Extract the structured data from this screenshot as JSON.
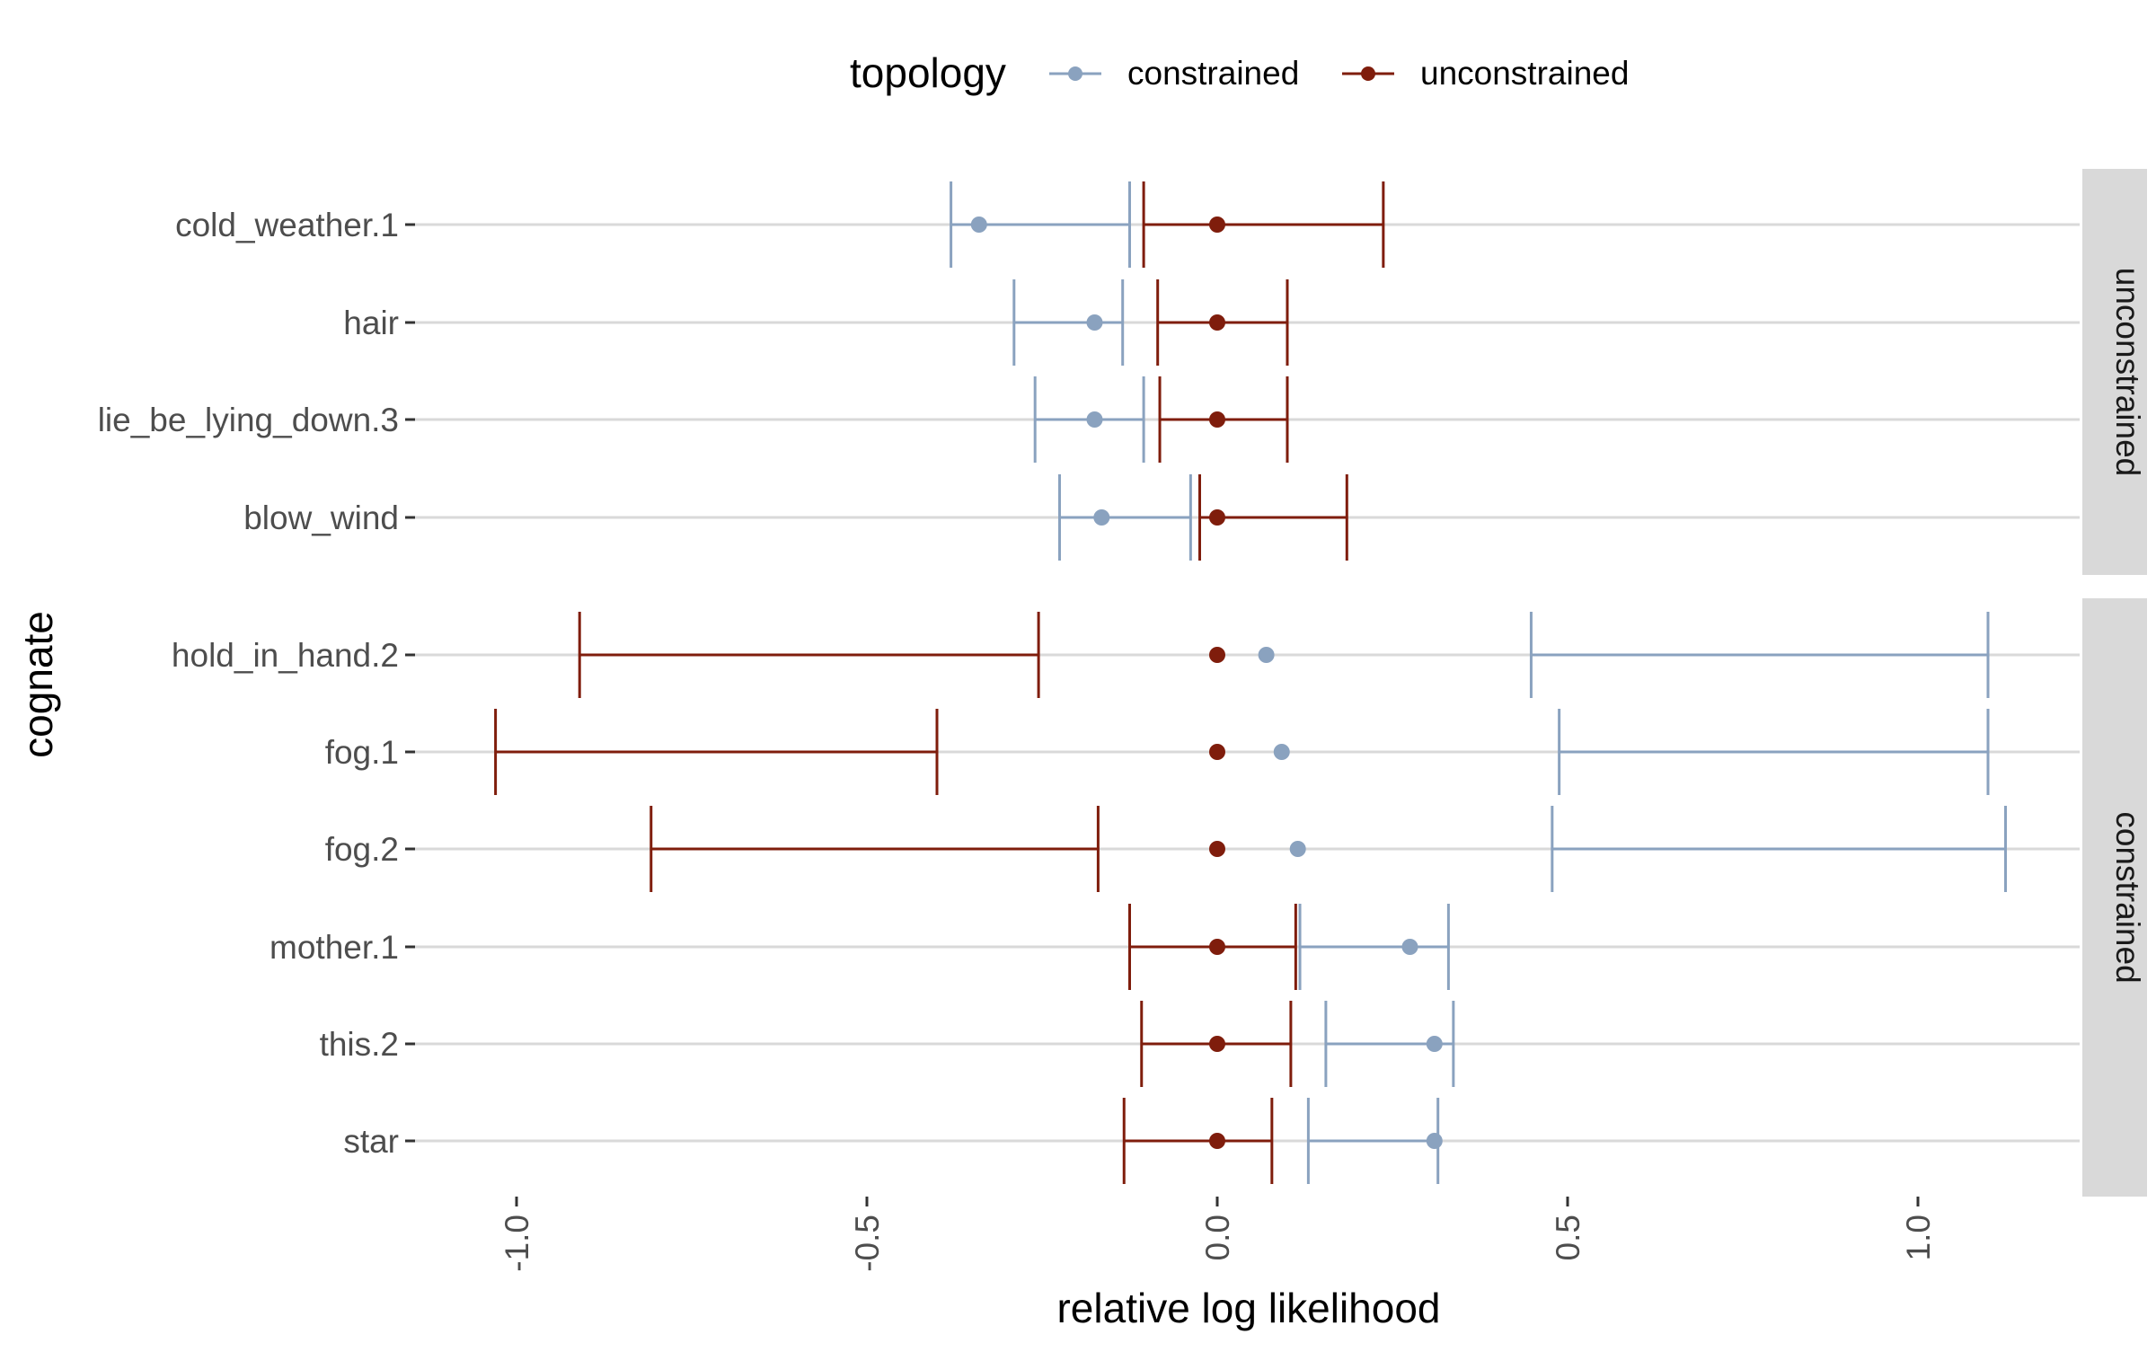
{
  "chart_data": {
    "type": "errorbar",
    "title": "",
    "xlabel": "relative log likelihood",
    "ylabel": "cognate",
    "xlim": [
      -1.12,
      1.22
    ],
    "x_ticks": [
      -1.0,
      -0.5,
      0.0,
      0.5,
      1.0
    ],
    "x_tick_labels": [
      "-1.0",
      "-0.5",
      "0.0",
      "0.5",
      "1.0"
    ],
    "grid": "horizontal",
    "legend": {
      "title": "topology",
      "placement": "top",
      "items": [
        {
          "label": "constrained",
          "color": "#8aa2bf"
        },
        {
          "label": "unconstrained",
          "color": "#7f1d0c"
        }
      ]
    },
    "colors": {
      "constrained": "#8aa2bf",
      "unconstrained": "#7f1d0c",
      "strip_bg": "#d9d9d9",
      "grid": "#d9d9d9"
    },
    "facets": [
      {
        "label": "unconstrained",
        "rows": [
          {
            "cognate": "cold_weather.1",
            "constrained": {
              "point": -0.34,
              "lo": -0.38,
              "hi": -0.125
            },
            "unconstrained": {
              "point": 0.0,
              "lo": -0.105,
              "hi": 0.237
            }
          },
          {
            "cognate": "hair",
            "constrained": {
              "point": -0.175,
              "lo": -0.29,
              "hi": -0.135
            },
            "unconstrained": {
              "point": 0.0,
              "lo": -0.085,
              "hi": 0.1
            }
          },
          {
            "cognate": "lie_be_lying_down.3",
            "constrained": {
              "point": -0.175,
              "lo": -0.26,
              "hi": -0.105
            },
            "unconstrained": {
              "point": 0.0,
              "lo": -0.082,
              "hi": 0.1
            }
          },
          {
            "cognate": "blow_wind",
            "constrained": {
              "point": -0.165,
              "lo": -0.225,
              "hi": -0.038
            },
            "unconstrained": {
              "point": 0.0,
              "lo": -0.025,
              "hi": 0.185
            }
          }
        ]
      },
      {
        "label": "constrained",
        "rows": [
          {
            "cognate": "hold_in_hand.2",
            "constrained": {
              "point": 0.07,
              "lo": 0.448,
              "hi": 1.1
            },
            "unconstrained": {
              "point": 0.0,
              "lo": -0.91,
              "hi": -0.255
            }
          },
          {
            "cognate": "fog.1",
            "constrained": {
              "point": 0.092,
              "lo": 0.488,
              "hi": 1.1
            },
            "unconstrained": {
              "point": 0.0,
              "lo": -1.03,
              "hi": -0.4
            }
          },
          {
            "cognate": "fog.2",
            "constrained": {
              "point": 0.115,
              "lo": 0.478,
              "hi": 1.125
            },
            "unconstrained": {
              "point": 0.0,
              "lo": -0.808,
              "hi": -0.17
            }
          },
          {
            "cognate": "mother.1",
            "constrained": {
              "point": 0.275,
              "lo": 0.118,
              "hi": 0.33
            },
            "unconstrained": {
              "point": 0.0,
              "lo": -0.125,
              "hi": 0.112
            }
          },
          {
            "cognate": "this.2",
            "constrained": {
              "point": 0.31,
              "lo": 0.155,
              "hi": 0.337
            },
            "unconstrained": {
              "point": 0.0,
              "lo": -0.108,
              "hi": 0.105
            }
          },
          {
            "cognate": "star",
            "constrained": {
              "point": 0.31,
              "lo": 0.13,
              "hi": 0.315
            },
            "unconstrained": {
              "point": 0.0,
              "lo": -0.133,
              "hi": 0.078
            }
          }
        ]
      }
    ]
  }
}
